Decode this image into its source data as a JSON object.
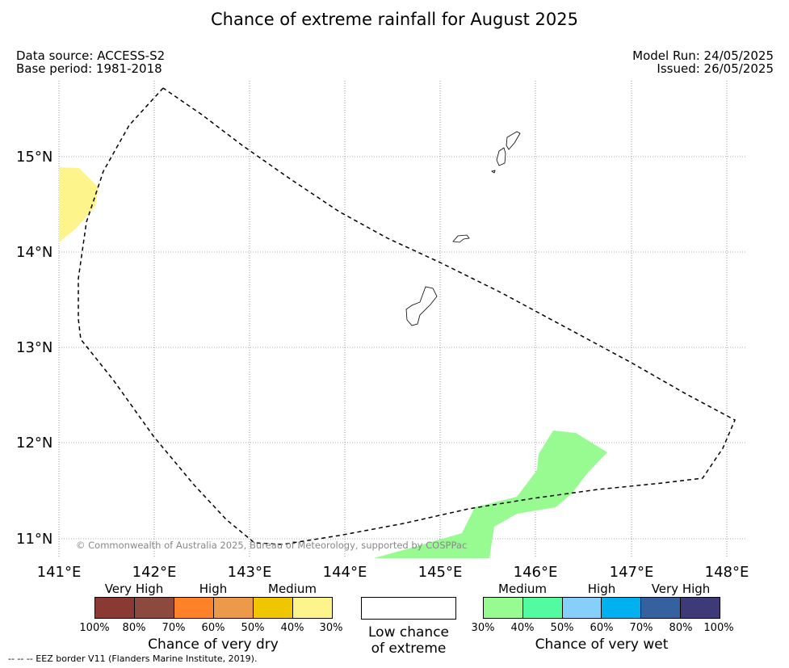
{
  "title": "Chance of extreme rainfall for August 2025",
  "data_source": "Data source: ACCESS-S2",
  "base_period": "Base period: 1981-2018",
  "model_run": "Model Run: 24/05/2025",
  "issued": "Issued: 26/05/2025",
  "axes": {
    "lon_ticks": [
      "141°E",
      "142°E",
      "143°E",
      "144°E",
      "145°E",
      "146°E",
      "147°E",
      "148°E"
    ],
    "lat_ticks": [
      "15°N",
      "14°N",
      "13°N",
      "12°N",
      "11°N"
    ],
    "lon_range": [
      141,
      148.2
    ],
    "lat_range": [
      10.8,
      15.8
    ],
    "grid": true
  },
  "copyright": "© Commonwealth of Australia 2025, Bureau of Meteorology, supported by COSPPac",
  "legend": {
    "dry": {
      "title": "Chance of very dry",
      "categories": [
        "Very High",
        "High",
        "Medium"
      ],
      "colors": [
        "#8b3a33",
        "#8b4a3d",
        "#ff8128",
        "#ec9a49",
        "#efc600",
        "#fdf48b"
      ],
      "percent_labels": [
        "100%",
        "80%",
        "70%",
        "60%",
        "50%",
        "40%",
        "30%"
      ]
    },
    "low": {
      "label_line1": "Low chance",
      "label_line2": "of extreme"
    },
    "wet": {
      "title": "Chance of very wet",
      "categories": [
        "Medium",
        "High",
        "Very High"
      ],
      "colors": [
        "#98fb91",
        "#52fba0",
        "#86cffb",
        "#00b0ef",
        "#36619f",
        "#3e3a78"
      ],
      "percent_labels": [
        "30%",
        "40%",
        "50%",
        "60%",
        "70%",
        "80%",
        "100%"
      ]
    }
  },
  "footnote": "--  --  -- EEZ border V11 (Flanders Marine Institute, 2019)."
}
